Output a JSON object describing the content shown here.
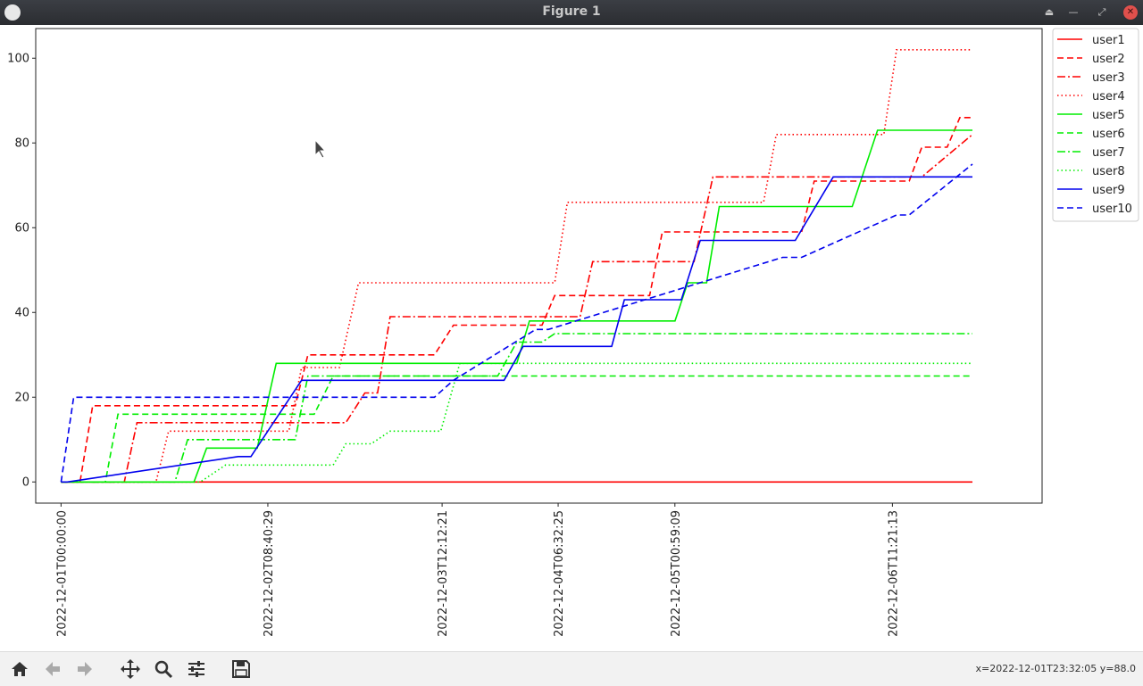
{
  "window": {
    "title": "Figure 1",
    "buttons": [
      "eject-icon",
      "minimize-icon",
      "restore-icon",
      "close-icon"
    ]
  },
  "toolbar": {
    "buttons": [
      "home-icon",
      "back-arrow-icon",
      "forward-arrow-icon",
      "pan-icon",
      "zoom-icon",
      "configure-subplots-icon",
      "save-icon"
    ],
    "coord_readout": "x=2022-12-01T23:32:05 y=88.0"
  },
  "chart_data": {
    "type": "line",
    "title": "",
    "xlabel": "",
    "ylabel": "",
    "x_type": "datetime",
    "xlim": [
      "2022-11-30T20:00",
      "2022-12-07T11:00"
    ],
    "ylim": [
      -5,
      107
    ],
    "yticks": [
      0,
      20,
      40,
      60,
      80,
      100
    ],
    "xticks": [
      "2022-12-01T00:00:00",
      "2022-12-02T08:40:29",
      "2022-12-03T12:12:21",
      "2022-12-04T06:32:25",
      "2022-12-05T00:59:09",
      "2022-12-06T11:21:13"
    ],
    "grid": false,
    "legend_position": "outside-right-top",
    "series": [
      {
        "name": "user1",
        "color": "#ff0000",
        "linestyle": "solid",
        "x": [
          "2022-12-01T00:00",
          "2022-12-07T00:00"
        ],
        "y": [
          0,
          0
        ]
      },
      {
        "name": "user2",
        "color": "#ff0000",
        "linestyle": "dashed",
        "x": [
          "2022-12-01T00:00",
          "2022-12-01T03:00",
          "2022-12-01T05:00",
          "2022-12-02T13:00",
          "2022-12-02T15:00",
          "2022-12-03T11:00",
          "2022-12-03T14:00",
          "2022-12-04T04:00",
          "2022-12-04T06:00",
          "2022-12-04T21:00",
          "2022-12-04T23:00",
          "2022-12-05T21:00",
          "2022-12-05T23:00",
          "2022-12-06T14:00",
          "2022-12-06T16:00",
          "2022-12-06T20:00",
          "2022-12-06T22:00",
          "2022-12-07T00:00"
        ],
        "y": [
          0,
          0,
          18,
          18,
          30,
          30,
          37,
          37,
          44,
          44,
          59,
          59,
          71,
          71,
          79,
          79,
          86,
          86
        ]
      },
      {
        "name": "user3",
        "color": "#ff0000",
        "linestyle": "dashdot",
        "x": [
          "2022-12-01T00:00",
          "2022-12-01T10:00",
          "2022-12-01T12:00",
          "2022-12-02T21:00",
          "2022-12-03T00:00",
          "2022-12-03T02:00",
          "2022-12-03T04:00",
          "2022-12-04T10:00",
          "2022-12-04T12:00",
          "2022-12-05T04:00",
          "2022-12-05T07:00",
          "2022-12-05T14:00",
          "2022-12-06T16:00",
          "2022-12-07T00:00"
        ],
        "y": [
          0,
          0,
          14,
          14,
          21,
          21,
          39,
          39,
          52,
          52,
          72,
          72,
          72,
          82
        ]
      },
      {
        "name": "user4",
        "color": "#ff0000",
        "linestyle": "dotted",
        "x": [
          "2022-12-01T00:00",
          "2022-12-01T15:00",
          "2022-12-01T17:00",
          "2022-12-02T12:00",
          "2022-12-02T14:00",
          "2022-12-02T20:00",
          "2022-12-02T23:00",
          "2022-12-04T06:00",
          "2022-12-04T08:00",
          "2022-12-05T15:00",
          "2022-12-05T17:00",
          "2022-12-06T10:00",
          "2022-12-06T12:00",
          "2022-12-07T00:00"
        ],
        "y": [
          0,
          0,
          12,
          12,
          27,
          27,
          47,
          47,
          66,
          66,
          82,
          82,
          102,
          102
        ]
      },
      {
        "name": "user5",
        "color": "#00ee00",
        "linestyle": "solid",
        "x": [
          "2022-12-01T00:00",
          "2022-12-01T21:00",
          "2022-12-01T23:00",
          "2022-12-02T07:00",
          "2022-12-02T10:00",
          "2022-12-04T00:00",
          "2022-12-04T02:00",
          "2022-12-05T01:00",
          "2022-12-05T03:00",
          "2022-12-05T06:00",
          "2022-12-05T08:00",
          "2022-12-06T05:00",
          "2022-12-06T09:00",
          "2022-12-07T00:00"
        ],
        "y": [
          0,
          0,
          8,
          8,
          28,
          28,
          38,
          38,
          47,
          47,
          65,
          65,
          83,
          83
        ]
      },
      {
        "name": "user6",
        "color": "#00ee00",
        "linestyle": "dashed",
        "x": [
          "2022-12-01T00:00",
          "2022-12-01T07:00",
          "2022-12-01T09:00",
          "2022-12-02T16:00",
          "2022-12-02T19:00",
          "2022-12-04T04:00",
          "2022-12-04T06:00",
          "2022-12-07T00:00"
        ],
        "y": [
          0,
          0,
          16,
          16,
          25,
          25,
          25,
          25
        ]
      },
      {
        "name": "user7",
        "color": "#00ee00",
        "linestyle": "dashdot",
        "x": [
          "2022-12-01T00:00",
          "2022-12-01T18:00",
          "2022-12-01T20:00",
          "2022-12-02T13:00",
          "2022-12-02T15:00",
          "2022-12-03T21:00",
          "2022-12-04T00:00",
          "2022-12-04T04:00",
          "2022-12-04T06:00",
          "2022-12-07T00:00"
        ],
        "y": [
          0,
          0,
          10,
          10,
          25,
          25,
          33,
          33,
          35,
          35
        ]
      },
      {
        "name": "user8",
        "color": "#00ee00",
        "linestyle": "dotted",
        "x": [
          "2022-12-01T00:00",
          "2022-12-01T22:00",
          "2022-12-02T02:00",
          "2022-12-02T19:00",
          "2022-12-02T21:00",
          "2022-12-03T01:00",
          "2022-12-03T04:00",
          "2022-12-03T12:00",
          "2022-12-03T15:00",
          "2022-12-07T00:00"
        ],
        "y": [
          0,
          0,
          4,
          4,
          9,
          9,
          12,
          12,
          28,
          28
        ]
      },
      {
        "name": "user9",
        "color": "#0000ee",
        "linestyle": "solid",
        "x": [
          "2022-12-01T00:00",
          "2022-12-01T01:00",
          "2022-12-02T04:00",
          "2022-12-02T06:00",
          "2022-12-02T14:00",
          "2022-12-03T22:00",
          "2022-12-04T01:00",
          "2022-12-04T15:00",
          "2022-12-04T17:00",
          "2022-12-05T02:00",
          "2022-12-05T05:00",
          "2022-12-05T20:00",
          "2022-12-06T02:00",
          "2022-12-06T23:00",
          "2022-12-07T00:00"
        ],
        "y": [
          0,
          0,
          6,
          6,
          24,
          24,
          32,
          32,
          43,
          43,
          57,
          57,
          72,
          72,
          72
        ]
      },
      {
        "name": "user10",
        "color": "#0000ee",
        "linestyle": "dashed",
        "x": [
          "2022-12-01T00:00",
          "2022-12-01T02:00",
          "2022-12-03T11:00",
          "2022-12-03T14:00",
          "2022-12-04T03:00",
          "2022-12-04T05:00",
          "2022-12-05T18:00",
          "2022-12-05T21:00",
          "2022-12-06T12:00",
          "2022-12-06T14:00",
          "2022-12-07T00:00"
        ],
        "y": [
          0,
          20,
          20,
          24,
          36,
          36,
          53,
          53,
          63,
          63,
          75
        ]
      }
    ]
  }
}
